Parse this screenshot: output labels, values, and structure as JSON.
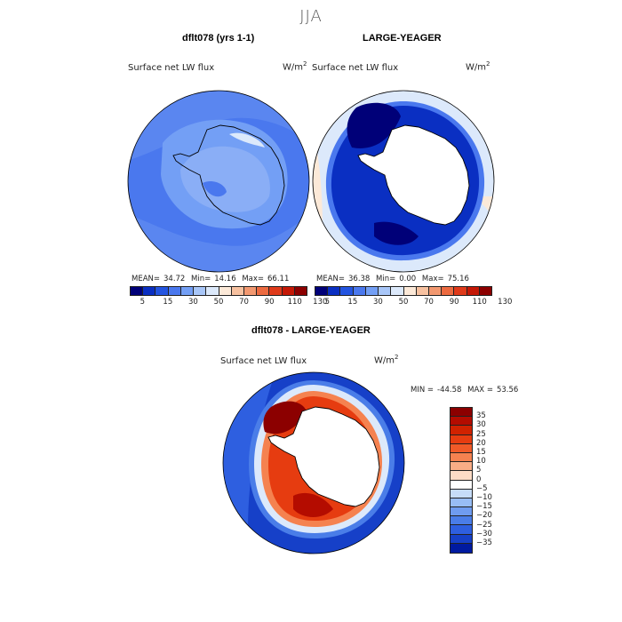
{
  "figure": {
    "season": "JJA",
    "var_name": "Surface net LW flux",
    "units_base": "W/m",
    "units_exp": "2"
  },
  "panel1": {
    "title": "dflt078 (yrs 1-1)",
    "mean_label": "MEAN=",
    "mean": "34.72",
    "min_label": "Min=",
    "min": "14.16",
    "max_label": "Max=",
    "max": "66.11"
  },
  "panel2": {
    "title": "LARGE-YEAGER",
    "mean_label": "MEAN=",
    "mean": "36.38",
    "min_label": "Min=",
    "min": "0.00",
    "max_label": "Max=",
    "max": "75.16"
  },
  "panel3": {
    "title": "dflt078 - LARGE-YEAGER",
    "min_label": "MIN =",
    "min": "-44.58",
    "max_label": "MAX =",
    "max": "53.56"
  },
  "chart_data": [
    {
      "type": "heatmap",
      "title": "dflt078 (yrs 1-1)",
      "subtitle": "Surface net LW flux",
      "units": "W/m2",
      "projection": "south polar stereographic",
      "stats": {
        "mean": 34.72,
        "min": 14.16,
        "max": 66.11
      },
      "colorbar_levels": [
        5,
        15,
        30,
        50,
        70,
        90,
        110,
        130
      ],
      "colorbar_tick_labels": [
        "5",
        "15",
        "30",
        "50",
        "70",
        "90",
        "110",
        "130"
      ],
      "colorbar_colors": [
        "#000078",
        "#0a2fc2",
        "#2354e0",
        "#4a78ee",
        "#739ff5",
        "#a8c6f8",
        "#dce9fb",
        "#fce9d8",
        "#f7c1a0",
        "#f29870",
        "#ec6a40",
        "#df3a1a",
        "#c41806",
        "#8c0000"
      ]
    },
    {
      "type": "heatmap",
      "title": "LARGE-YEAGER",
      "subtitle": "Surface net LW flux",
      "units": "W/m2",
      "projection": "south polar stereographic",
      "stats": {
        "mean": 36.38,
        "min": 0.0,
        "max": 75.16
      },
      "colorbar_levels": [
        5,
        15,
        30,
        50,
        70,
        90,
        110,
        130
      ],
      "colorbar_tick_labels": [
        "5",
        "15",
        "30",
        "50",
        "70",
        "90",
        "110",
        "130"
      ],
      "colorbar_colors": [
        "#000078",
        "#0a2fc2",
        "#2354e0",
        "#4a78ee",
        "#739ff5",
        "#a8c6f8",
        "#dce9fb",
        "#fce9d8",
        "#f7c1a0",
        "#f29870",
        "#ec6a40",
        "#df3a1a",
        "#c41806",
        "#8c0000"
      ]
    },
    {
      "type": "heatmap",
      "title": "dflt078 - LARGE-YEAGER",
      "subtitle": "Surface net LW flux",
      "units": "W/m2",
      "projection": "south polar stereographic",
      "stats": {
        "min": -44.58,
        "max": 53.56
      },
      "colorbar_levels": [
        35,
        30,
        25,
        20,
        15,
        10,
        5,
        0,
        -5,
        -10,
        -15,
        -20,
        -25,
        -30,
        -35
      ],
      "colorbar_tick_labels": [
        "35",
        "30",
        "25",
        "20",
        "15",
        "10",
        "5",
        "0",
        "−5",
        "−10",
        "−15",
        "−20",
        "−25",
        "−30",
        "−35"
      ],
      "colorbar_colors": [
        "#8c0000",
        "#b40c00",
        "#d02200",
        "#e63c10",
        "#f05a28",
        "#f58250",
        "#f9ad86",
        "#fddcc6",
        "#ffffff",
        "#c6dcf8",
        "#98bdf5",
        "#6f9cf0",
        "#4a7de8",
        "#2e5fe0",
        "#1640c8",
        "#001aa0"
      ]
    }
  ]
}
